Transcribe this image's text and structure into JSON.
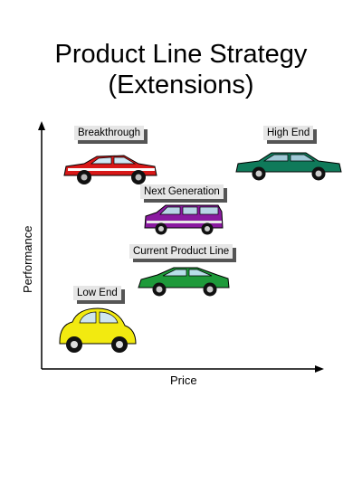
{
  "slide": {
    "title_line1": "Product Line Strategy",
    "title_line2": "(Extensions)"
  },
  "axes": {
    "x_label": "Price",
    "y_label": "Performance"
  },
  "products": {
    "breakthrough": {
      "label": "Breakthrough",
      "color": "#d81818",
      "icon": "sports-car-icon"
    },
    "high_end": {
      "label": "High End",
      "color": "#0f7a5a",
      "icon": "sedan-icon"
    },
    "next_generation": {
      "label": "Next Generation",
      "color": "#8a1aa0",
      "icon": "minivan-icon"
    },
    "current_product_line": {
      "label": "Current Product Line",
      "color": "#1e9a3a",
      "icon": "hatchback-icon"
    },
    "low_end": {
      "label": "Low End",
      "color": "#f2ea10",
      "icon": "beetle-icon"
    }
  }
}
